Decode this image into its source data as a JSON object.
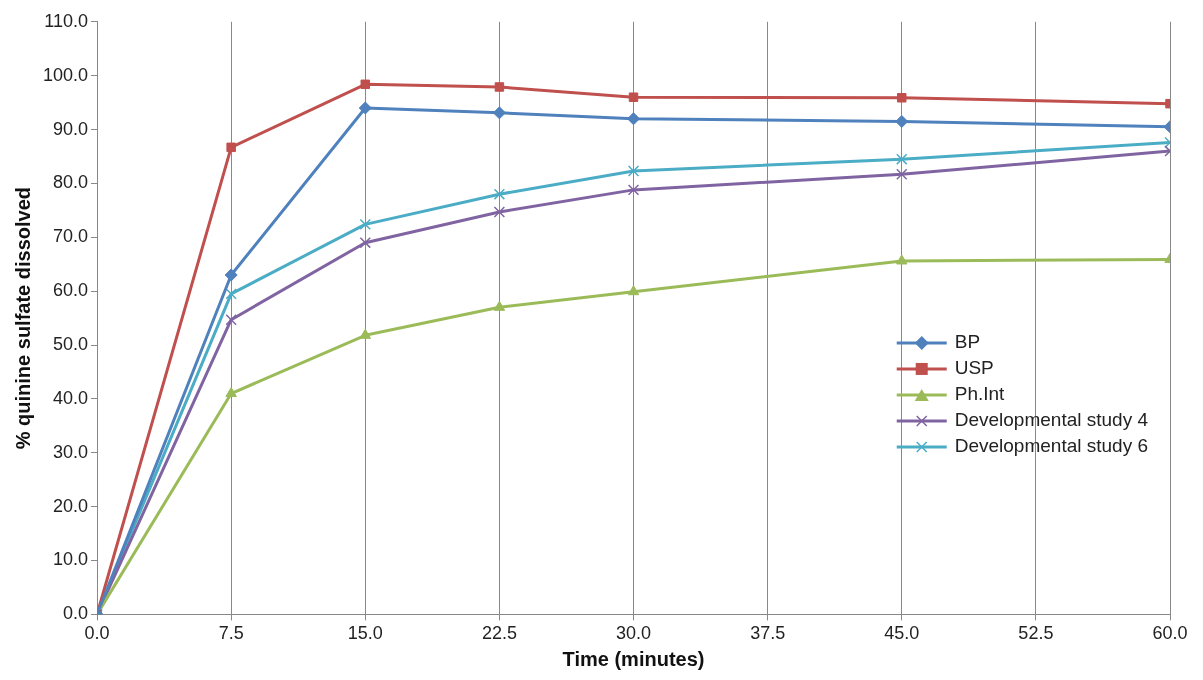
{
  "chart_data": {
    "type": "line",
    "xlabel": "Time (minutes)",
    "ylabel": "% quinine sulfate dissolved",
    "x": [
      0,
      7.5,
      15,
      22.5,
      30,
      45,
      60
    ],
    "xlim": [
      0,
      60
    ],
    "xticks": [
      {
        "value": 0,
        "label": "0.0"
      },
      7.5,
      {
        "value": 15,
        "label": "15.0"
      },
      22.5,
      {
        "value": 30,
        "label": "30.0"
      },
      37.5,
      {
        "value": 45,
        "label": "45.0"
      },
      52.5,
      {
        "value": 60,
        "label": "60.0"
      }
    ],
    "ylim": [
      0,
      110
    ],
    "yticks": [
      {
        "value": 0,
        "label": "0.0"
      },
      {
        "value": 10,
        "label": "10.0"
      },
      {
        "value": 20,
        "label": "20.0"
      },
      {
        "value": 30,
        "label": "30.0"
      },
      {
        "value": 40,
        "label": "40.0"
      },
      {
        "value": 50,
        "label": "50.0"
      },
      {
        "value": 60,
        "label": "60.0"
      },
      {
        "value": 70,
        "label": "70.0"
      },
      {
        "value": 80,
        "label": "80.0"
      },
      {
        "value": 90,
        "label": "90.0"
      },
      {
        "value": 100,
        "label": "100.0"
      },
      {
        "value": 110,
        "label": "110.0"
      }
    ],
    "grid": "x",
    "legend": "right",
    "line_style": "solid",
    "series": [
      {
        "name": "BP",
        "color": "#4f81bd",
        "marker": "diamond",
        "values": [
          0,
          63,
          94,
          93.1,
          92,
          91.5,
          90.5
        ]
      },
      {
        "name": "USP",
        "color": "#c0504d",
        "marker": "square",
        "values": [
          0,
          86.7,
          98.4,
          97.9,
          96,
          95.9,
          94.8
        ]
      },
      {
        "name": "Ph.Int",
        "color": "#9bbb59",
        "marker": "triangle",
        "values": [
          0,
          41,
          51.8,
          57,
          59.9,
          65.6,
          65.9
        ]
      },
      {
        "name": "Developmental study 4",
        "color": "#8064a2",
        "marker": "cross",
        "values": [
          0,
          54.7,
          69,
          74.7,
          78.8,
          81.7,
          86
        ]
      },
      {
        "name": "Developmental study 6",
        "color": "#4bacc6",
        "marker": "cross",
        "values": [
          0,
          59.5,
          72.4,
          78,
          82.3,
          84.5,
          87.6
        ]
      }
    ]
  }
}
